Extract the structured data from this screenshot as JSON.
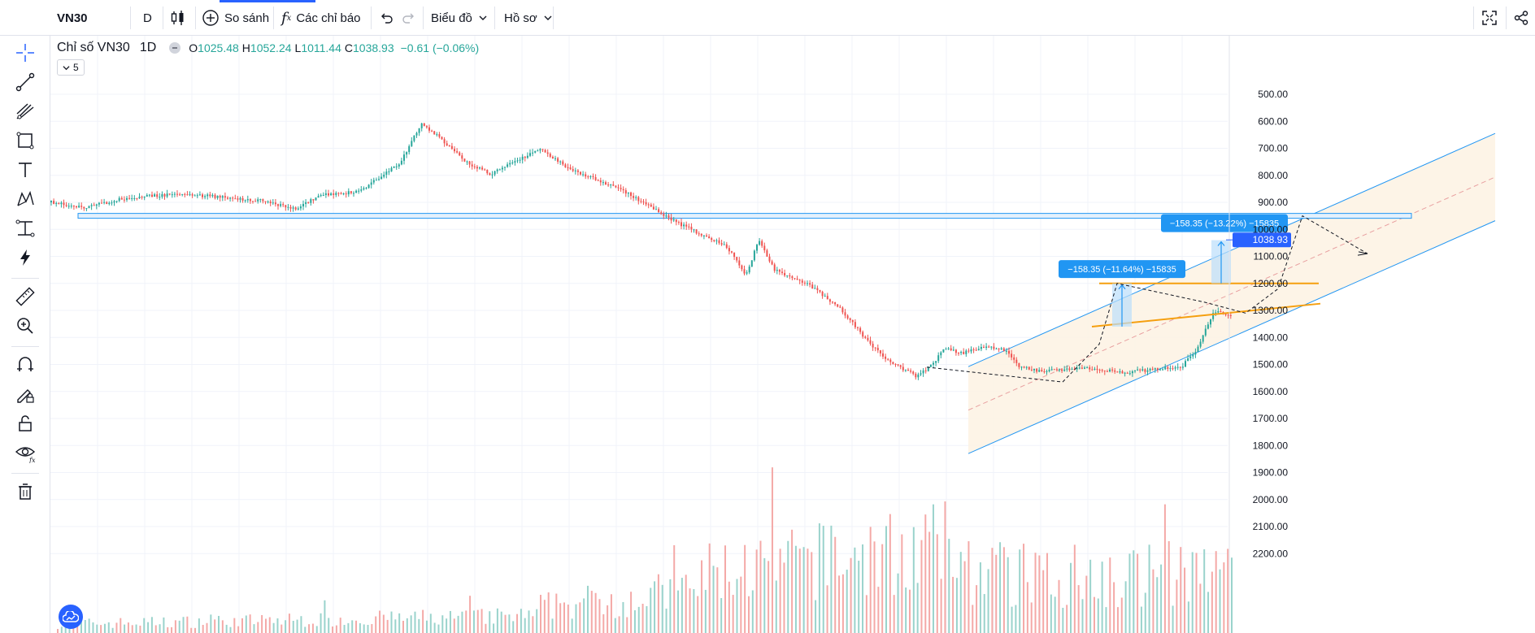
{
  "topbar": {
    "symbol": "VN30",
    "interval": "D",
    "compare_label": "So sánh",
    "indicators_label": "Các chỉ báo",
    "chart_menu_label": "Biểu đồ",
    "profile_menu_label": "Hồ sơ"
  },
  "legend": {
    "title": "Chỉ số VN30",
    "timeframe": "1D",
    "open_key": "O",
    "open": "1025.48",
    "high_key": "H",
    "high": "1052.24",
    "low_key": "L",
    "low": "1011.44",
    "close_key": "C",
    "close": "1038.93",
    "change": "−0.61 (−0.06%)",
    "collapse_count": "5"
  },
  "left_tools": [
    "crosshair-icon",
    "trend-line-icon",
    "pitchfork-icon",
    "rectangle-icon",
    "text-icon",
    "pattern-icon",
    "projection-icon",
    "lightning-icon",
    "ruler-icon",
    "zoom-in-icon",
    "magnet-icon",
    "lock-drawing-icon",
    "unlock-icon",
    "eye-icon",
    "trash-icon"
  ],
  "colors": {
    "up": "#26a69a",
    "down": "#ef5350",
    "accent": "#2962ff",
    "channel": "#2196f3",
    "triangle": "#f59f0f",
    "fill": "#fdf2e3"
  },
  "chart_data": {
    "type": "candlestick",
    "price_scale": "inverted",
    "yticks": [
      "500.00",
      "600.00",
      "700.00",
      "800.00",
      "900.00",
      "1000.00",
      "1100.00",
      "1200.00",
      "1300.00",
      "1400.00",
      "1500.00",
      "1600.00",
      "1700.00",
      "1800.00",
      "1900.00",
      "2000.00",
      "2100.00",
      "2200.00"
    ],
    "ylim": [
      464,
      2254
    ],
    "last_price_label": "1038.93",
    "last_price": 1038.93,
    "price_path": [
      [
        0,
        900
      ],
      [
        40,
        920
      ],
      [
        90,
        885
      ],
      [
        150,
        870
      ],
      [
        210,
        880
      ],
      [
        260,
        895
      ],
      [
        300,
        925
      ],
      [
        330,
        875
      ],
      [
        380,
        860
      ],
      [
        400,
        815
      ],
      [
        430,
        750
      ],
      [
        455,
        610
      ],
      [
        475,
        655
      ],
      [
        510,
        750
      ],
      [
        540,
        795
      ],
      [
        575,
        745
      ],
      [
        600,
        700
      ],
      [
        640,
        780
      ],
      [
        700,
        850
      ],
      [
        760,
        960
      ],
      [
        800,
        1020
      ],
      [
        830,
        1060
      ],
      [
        855,
        1170
      ],
      [
        870,
        1040
      ],
      [
        890,
        1150
      ],
      [
        930,
        1200
      ],
      [
        970,
        1290
      ],
      [
        1000,
        1400
      ],
      [
        1030,
        1490
      ],
      [
        1065,
        1545
      ],
      [
        1080,
        1510
      ],
      [
        1100,
        1440
      ],
      [
        1120,
        1460
      ],
      [
        1150,
        1430
      ],
      [
        1175,
        1450
      ],
      [
        1190,
        1510
      ],
      [
        1220,
        1525
      ],
      [
        1270,
        1515
      ],
      [
        1320,
        1530
      ],
      [
        1380,
        1510
      ],
      [
        1390,
        1510
      ],
      [
        1410,
        1440
      ],
      [
        1430,
        1300
      ],
      [
        1460,
        1330
      ],
      [
        1520,
        1290
      ],
      [
        1580,
        1310
      ],
      [
        1620,
        1240
      ],
      [
        1650,
        1140
      ],
      [
        1665,
        1040
      ],
      [
        1670,
        1038.93
      ]
    ],
    "volume_bar_count": 300,
    "annotations": {
      "measure_labels": [
        "−158.35 (−11.64%) −15835",
        "−158.35 (−13.22%) −15835"
      ],
      "horizontal_level": 950,
      "triangle_top": 1200,
      "channel_upper": [
        [
          1191,
          1508
        ],
        [
          1839,
          645
        ]
      ],
      "channel_lower": [
        [
          1191,
          1830
        ],
        [
          1839,
          968
        ]
      ]
    }
  }
}
